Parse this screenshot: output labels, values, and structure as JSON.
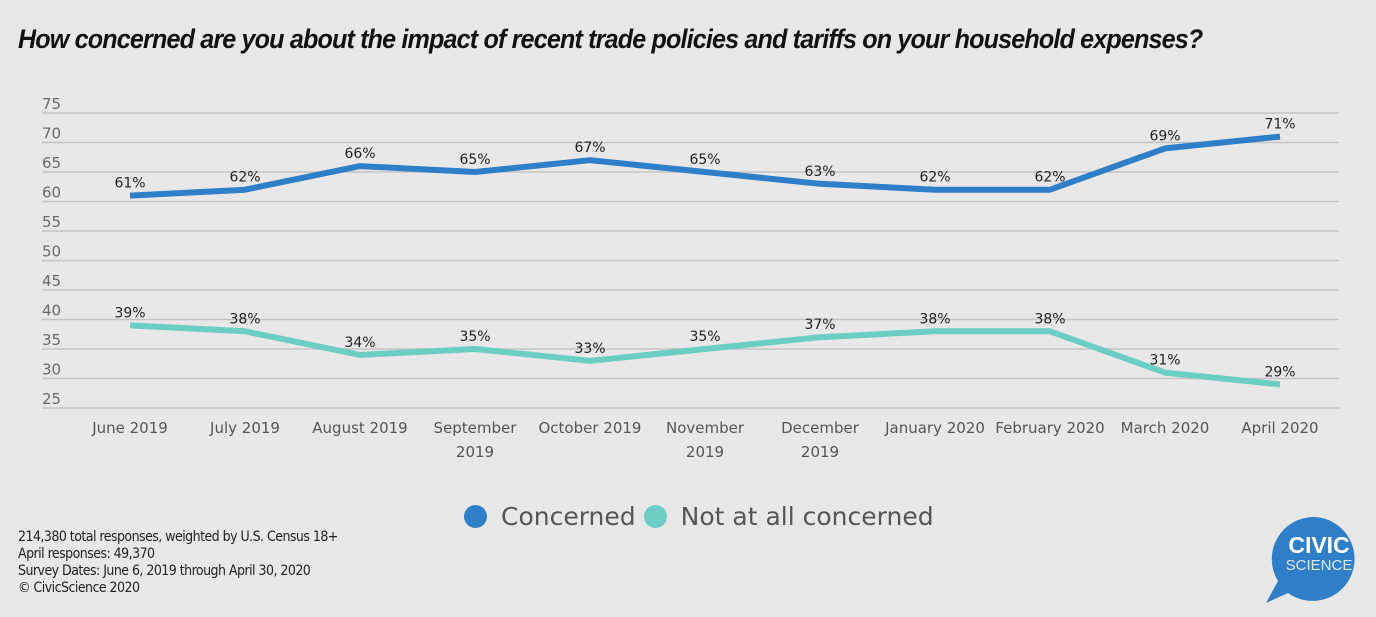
{
  "chart_data": {
    "type": "line",
    "title": "How concerned are you about the impact of recent trade policies and tariffs on your household expenses?",
    "xlabel": "",
    "ylabel": "",
    "ylim": [
      25,
      75
    ],
    "yticks": [
      75,
      70,
      65,
      60,
      55,
      50,
      45,
      40,
      35,
      30,
      25
    ],
    "grid": true,
    "categories": [
      [
        "June 2019"
      ],
      [
        "July 2019"
      ],
      [
        "August 2019"
      ],
      [
        "September",
        "2019"
      ],
      [
        "October 2019"
      ],
      [
        "November",
        "2019"
      ],
      [
        "December",
        "2019"
      ],
      [
        "January 2020"
      ],
      [
        "February 2020"
      ],
      [
        "March 2020"
      ],
      [
        "April 2020"
      ]
    ],
    "series": [
      {
        "name": "Concerned",
        "color": "#2f7fc8",
        "values": [
          61,
          62,
          66,
          65,
          67,
          65,
          63,
          62,
          62,
          69,
          71
        ],
        "labels": [
          "61%",
          "62%",
          "66%",
          "65%",
          "67%",
          "65%",
          "63%",
          "62%",
          "62%",
          "69%",
          "71%"
        ]
      },
      {
        "name": "Not at all concerned",
        "color": "#6ccdc4",
        "values": [
          39,
          38,
          34,
          35,
          33,
          35,
          37,
          38,
          38,
          31,
          29
        ],
        "labels": [
          "39%",
          "38%",
          "34%",
          "35%",
          "33%",
          "35%",
          "37%",
          "38%",
          "38%",
          "31%",
          "29%"
        ]
      }
    ],
    "legend": "bottom-center"
  },
  "footnote": {
    "line1": "214,380 total responses, weighted by U.S. Census 18+",
    "line2": "April responses: 49,370",
    "line3": "Survey Dates: June 6, 2019 through April 30, 2020",
    "line4": "© CivicScience 2020"
  },
  "logo": {
    "line1": "CIVIC",
    "line2": "SCIENCE",
    "color": "#2f7fc8"
  }
}
